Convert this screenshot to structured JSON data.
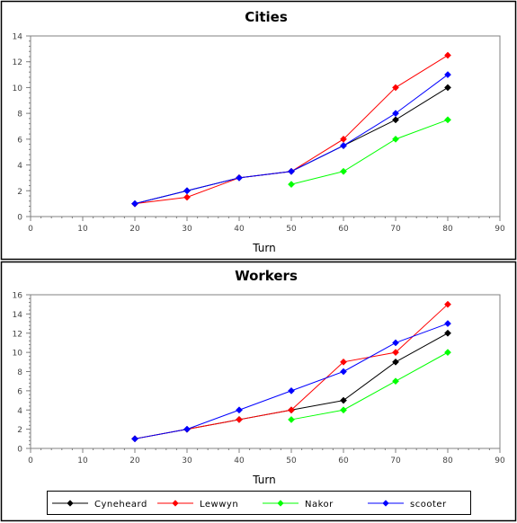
{
  "chart_data": [
    {
      "type": "line",
      "title": "Cities",
      "xlabel": "Turn",
      "ylabel": "",
      "xlim": [
        0,
        90
      ],
      "ylim": [
        0,
        14
      ],
      "xticks": [
        0,
        10,
        20,
        30,
        40,
        50,
        60,
        70,
        80,
        90
      ],
      "yticks": [
        0,
        2,
        4,
        6,
        8,
        10,
        12,
        14
      ],
      "grid": false,
      "series": [
        {
          "name": "Cyneheard",
          "color": "#000000",
          "points": [
            [
              20,
              1
            ],
            [
              30,
              2
            ],
            [
              40,
              3
            ],
            [
              50,
              3.5
            ],
            [
              60,
              5.5
            ],
            [
              70,
              7.5
            ],
            [
              80,
              10
            ]
          ]
        },
        {
          "name": "Lewwyn",
          "color": "#ff0000",
          "points": [
            [
              20,
              1
            ],
            [
              30,
              1.5
            ],
            [
              40,
              3
            ],
            [
              50,
              3.5
            ],
            [
              60,
              6
            ],
            [
              70,
              10
            ],
            [
              80,
              12.5
            ]
          ]
        },
        {
          "name": "Nakor",
          "color": "#00ff00",
          "points": [
            [
              50,
              2.5
            ],
            [
              60,
              3.5
            ],
            [
              70,
              6
            ],
            [
              80,
              7.5
            ]
          ]
        },
        {
          "name": "scooter",
          "color": "#0000ff",
          "points": [
            [
              20,
              1
            ],
            [
              30,
              2
            ],
            [
              40,
              3
            ],
            [
              50,
              3.5
            ],
            [
              60,
              5.5
            ],
            [
              70,
              8
            ],
            [
              80,
              11
            ]
          ]
        }
      ]
    },
    {
      "type": "line",
      "title": "Workers",
      "xlabel": "Turn",
      "ylabel": "",
      "xlim": [
        0,
        90
      ],
      "ylim": [
        0,
        16
      ],
      "xticks": [
        0,
        10,
        20,
        30,
        40,
        50,
        60,
        70,
        80,
        90
      ],
      "yticks": [
        0,
        2,
        4,
        6,
        8,
        10,
        12,
        14,
        16
      ],
      "grid": false,
      "series": [
        {
          "name": "Cyneheard",
          "color": "#000000",
          "points": [
            [
              20,
              1
            ],
            [
              30,
              2
            ],
            [
              40,
              3
            ],
            [
              50,
              4
            ],
            [
              60,
              5
            ],
            [
              70,
              9
            ],
            [
              80,
              12
            ]
          ]
        },
        {
          "name": "Lewwyn",
          "color": "#ff0000",
          "points": [
            [
              20,
              1
            ],
            [
              30,
              2
            ],
            [
              40,
              3
            ],
            [
              50,
              4
            ],
            [
              60,
              9
            ],
            [
              70,
              10
            ],
            [
              80,
              15
            ]
          ]
        },
        {
          "name": "Nakor",
          "color": "#00ff00",
          "points": [
            [
              50,
              3
            ],
            [
              60,
              4
            ],
            [
              70,
              7
            ],
            [
              80,
              10
            ]
          ]
        },
        {
          "name": "scooter",
          "color": "#0000ff",
          "points": [
            [
              20,
              1
            ],
            [
              30,
              2
            ],
            [
              40,
              4
            ],
            [
              50,
              6
            ],
            [
              60,
              8
            ],
            [
              70,
              11
            ],
            [
              80,
              13
            ]
          ]
        }
      ]
    }
  ],
  "legend": {
    "placement": "bottom",
    "items": [
      {
        "label": "Cyneheard",
        "color": "#000000"
      },
      {
        "label": "Lewwyn",
        "color": "#ff0000"
      },
      {
        "label": "Nakor",
        "color": "#00ff00"
      },
      {
        "label": "scooter",
        "color": "#0000ff"
      }
    ]
  }
}
